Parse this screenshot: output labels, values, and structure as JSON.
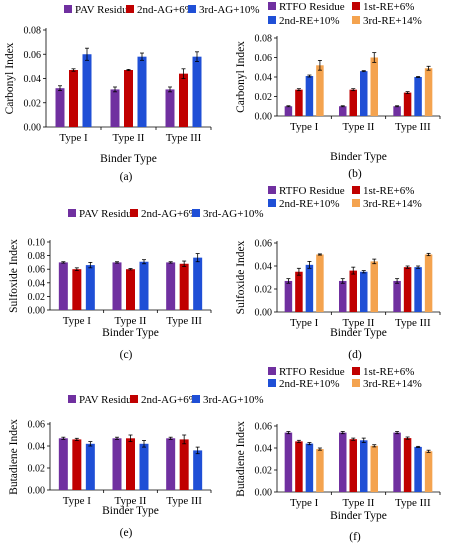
{
  "colors": {
    "PAV Residue": "#7030a0",
    "RTFO Residue": "#7030a0",
    "2nd-AG+6%": "#c00000",
    "1st-RE+6%": "#c00000",
    "3rd-AG+10%": "#1f4fd6",
    "2nd-RE+10%": "#1f4fd6",
    "3rd-RE+14%": "#f4a34f",
    "axis": "#000000",
    "grid": "#d9d9d9"
  },
  "chart_data": [
    {
      "type": "bar",
      "panel_label": "(a)",
      "categories": [
        "Type I",
        "Type II",
        "Type III"
      ],
      "series": [
        {
          "name": "PAV Residue",
          "values": [
            0.032,
            0.031,
            0.031
          ],
          "errors": [
            0.002,
            0.002,
            0.002
          ]
        },
        {
          "name": "2nd-AG+6%",
          "values": [
            0.047,
            0.047,
            0.044
          ],
          "errors": [
            0.001,
            0.0005,
            0.004
          ]
        },
        {
          "name": "3rd-AG+10%",
          "values": [
            0.06,
            0.058,
            0.058
          ],
          "errors": [
            0.005,
            0.003,
            0.004
          ]
        }
      ],
      "xlabel": "Binder Type",
      "ylabel": "Carbonyl Index",
      "ylim": [
        0,
        0.08
      ],
      "yticks": [
        "0.00",
        "0.02",
        "0.04",
        "0.06",
        "0.08"
      ],
      "legend": "top"
    },
    {
      "type": "bar",
      "panel_label": "(b)",
      "categories": [
        "Type I",
        "Type II",
        "Type III"
      ],
      "series": [
        {
          "name": "RTFO Residue",
          "values": [
            0.01,
            0.01,
            0.01
          ],
          "errors": [
            0.0005,
            0.0005,
            0.0005
          ]
        },
        {
          "name": "1st-RE+6%",
          "values": [
            0.027,
            0.027,
            0.024
          ],
          "errors": [
            0.001,
            0.001,
            0.001
          ]
        },
        {
          "name": "2nd-RE+10%",
          "values": [
            0.041,
            0.046,
            0.04
          ],
          "errors": [
            0.001,
            0.0005,
            0.0005
          ]
        },
        {
          "name": "3rd-RE+14%",
          "values": [
            0.052,
            0.06,
            0.049
          ],
          "errors": [
            0.005,
            0.005,
            0.002
          ]
        }
      ],
      "xlabel": "Binder Type",
      "ylabel": "Carbonyl Index",
      "ylim": [
        0,
        0.08
      ],
      "yticks": [
        "0.00",
        "0.02",
        "0.04",
        "0.06",
        "0.08"
      ],
      "legend": "top"
    },
    {
      "type": "bar",
      "panel_label": "(c)",
      "categories": [
        "Type I",
        "Type II",
        "Type III"
      ],
      "series": [
        {
          "name": "PAV Residue",
          "values": [
            0.07,
            0.07,
            0.07
          ],
          "errors": [
            0.001,
            0.001,
            0.001
          ]
        },
        {
          "name": "2nd-AG+6%",
          "values": [
            0.06,
            0.06,
            0.068
          ],
          "errors": [
            0.002,
            0.001,
            0.004
          ]
        },
        {
          "name": "3rd-AG+10%",
          "values": [
            0.066,
            0.071,
            0.077
          ],
          "errors": [
            0.004,
            0.003,
            0.006
          ]
        }
      ],
      "xlabel": "Binder Type",
      "ylabel": "Sulfoxide Index",
      "ylim": [
        0,
        0.1
      ],
      "yticks": [
        "0.00",
        "0.02",
        "0.04",
        "0.06",
        "0.08",
        "0.10"
      ],
      "legend": "top"
    },
    {
      "type": "bar",
      "panel_label": "(d)",
      "categories": [
        "Type I",
        "Type II",
        "Type III"
      ],
      "series": [
        {
          "name": "RTFO Residue",
          "values": [
            0.027,
            0.027,
            0.027
          ],
          "errors": [
            0.002,
            0.002,
            0.002
          ]
        },
        {
          "name": "1st-RE+6%",
          "values": [
            0.035,
            0.036,
            0.039
          ],
          "errors": [
            0.003,
            0.003,
            0.001
          ]
        },
        {
          "name": "2nd-RE+10%",
          "values": [
            0.041,
            0.035,
            0.039
          ],
          "errors": [
            0.003,
            0.001,
            0.001
          ]
        },
        {
          "name": "3rd-RE+14%",
          "values": [
            0.05,
            0.044,
            0.05
          ],
          "errors": [
            0.0005,
            0.002,
            0.001
          ]
        }
      ],
      "xlabel": "Binder Type",
      "ylabel": "Sulfoxide Index",
      "ylim": [
        0,
        0.06
      ],
      "yticks": [
        "0.00",
        "0.02",
        "0.04",
        "0.06"
      ],
      "legend": "top"
    },
    {
      "type": "bar",
      "panel_label": "(e)",
      "categories": [
        "Type I",
        "Type II",
        "Type III"
      ],
      "series": [
        {
          "name": "PAV Residue",
          "values": [
            0.047,
            0.047,
            0.047
          ],
          "errors": [
            0.001,
            0.001,
            0.001
          ]
        },
        {
          "name": "2nd-AG+6%",
          "values": [
            0.046,
            0.047,
            0.046
          ],
          "errors": [
            0.001,
            0.003,
            0.004
          ]
        },
        {
          "name": "3rd-AG+10%",
          "values": [
            0.042,
            0.042,
            0.036
          ],
          "errors": [
            0.002,
            0.003,
            0.003
          ]
        }
      ],
      "xlabel": "Binder Type",
      "ylabel": "Butadiene Index",
      "ylim": [
        0,
        0.06
      ],
      "yticks": [
        "0.00",
        "0.02",
        "0.04",
        "0.06"
      ],
      "legend": "top"
    },
    {
      "type": "bar",
      "panel_label": "(f)",
      "categories": [
        "Type I",
        "Type II",
        "Type III"
      ],
      "series": [
        {
          "name": "RTFO Residue",
          "values": [
            0.054,
            0.054,
            0.054
          ],
          "errors": [
            0.001,
            0.001,
            0.001
          ]
        },
        {
          "name": "1st-RE+6%",
          "values": [
            0.046,
            0.048,
            0.049
          ],
          "errors": [
            0.001,
            0.001,
            0.001
          ]
        },
        {
          "name": "2nd-RE+10%",
          "values": [
            0.044,
            0.047,
            0.041
          ],
          "errors": [
            0.001,
            0.002,
            0.0005
          ]
        },
        {
          "name": "3rd-RE+14%",
          "values": [
            0.039,
            0.042,
            0.037
          ],
          "errors": [
            0.001,
            0.001,
            0.001
          ]
        }
      ],
      "xlabel": "Binder Type",
      "ylabel": "Butadiene Index",
      "ylim": [
        0,
        0.06
      ],
      "yticks": [
        "0.00",
        "0.02",
        "0.04",
        "0.06"
      ],
      "legend": "top"
    }
  ]
}
